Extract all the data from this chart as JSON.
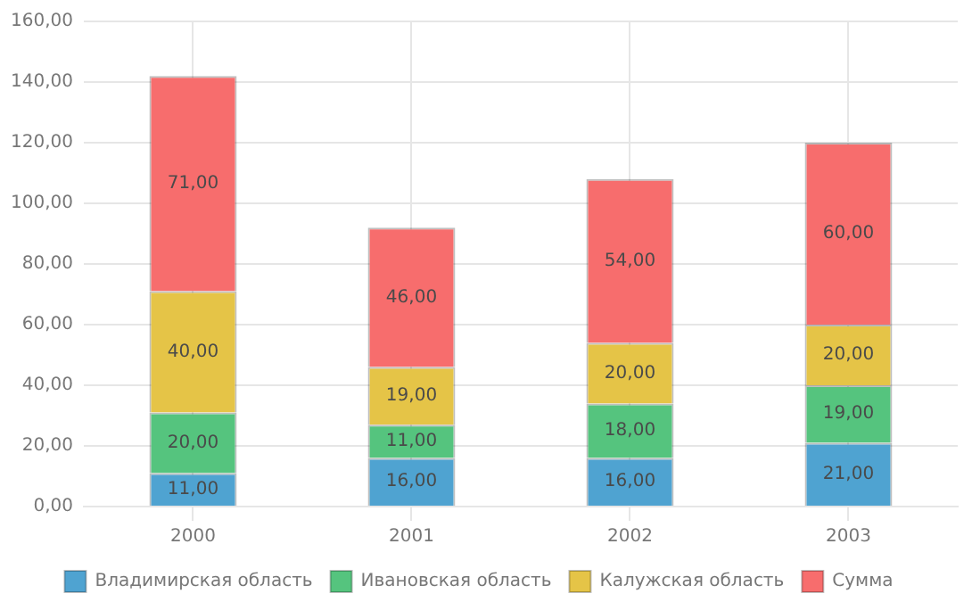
{
  "chart_data": {
    "type": "bar",
    "stacked": true,
    "categories": [
      "2000",
      "2001",
      "2002",
      "2003"
    ],
    "series": [
      {
        "name": "Владимирская область",
        "color": "#4fa3d1",
        "values": [
          11,
          16,
          16,
          21
        ],
        "value_labels": [
          "11,00",
          "16,00",
          "16,00",
          "21,00"
        ]
      },
      {
        "name": "Ивановская область",
        "color": "#55c47e",
        "values": [
          20,
          11,
          18,
          19
        ],
        "value_labels": [
          "20,00",
          "11,00",
          "18,00",
          "19,00"
        ]
      },
      {
        "name": "Калужская область",
        "color": "#e5c447",
        "values": [
          40,
          19,
          20,
          20
        ],
        "value_labels": [
          "40,00",
          "19,00",
          "20,00",
          "20,00"
        ]
      },
      {
        "name": "Сумма",
        "color": "#f76d6d",
        "values": [
          71,
          46,
          54,
          60
        ],
        "value_labels": [
          "71,00",
          "46,00",
          "54,00",
          "60,00"
        ]
      }
    ],
    "ylim": [
      0,
      160
    ],
    "yticks": [
      {
        "value": 0,
        "label": "0,00"
      },
      {
        "value": 20,
        "label": "20,00"
      },
      {
        "value": 40,
        "label": "40,00"
      },
      {
        "value": 60,
        "label": "60,00"
      },
      {
        "value": 80,
        "label": "80,00"
      },
      {
        "value": 100,
        "label": "100,00"
      },
      {
        "value": 120,
        "label": "120,00"
      },
      {
        "value": 140,
        "label": "140,00"
      },
      {
        "value": 160,
        "label": "160,00"
      }
    ],
    "grid": true,
    "legend": "bottom"
  }
}
